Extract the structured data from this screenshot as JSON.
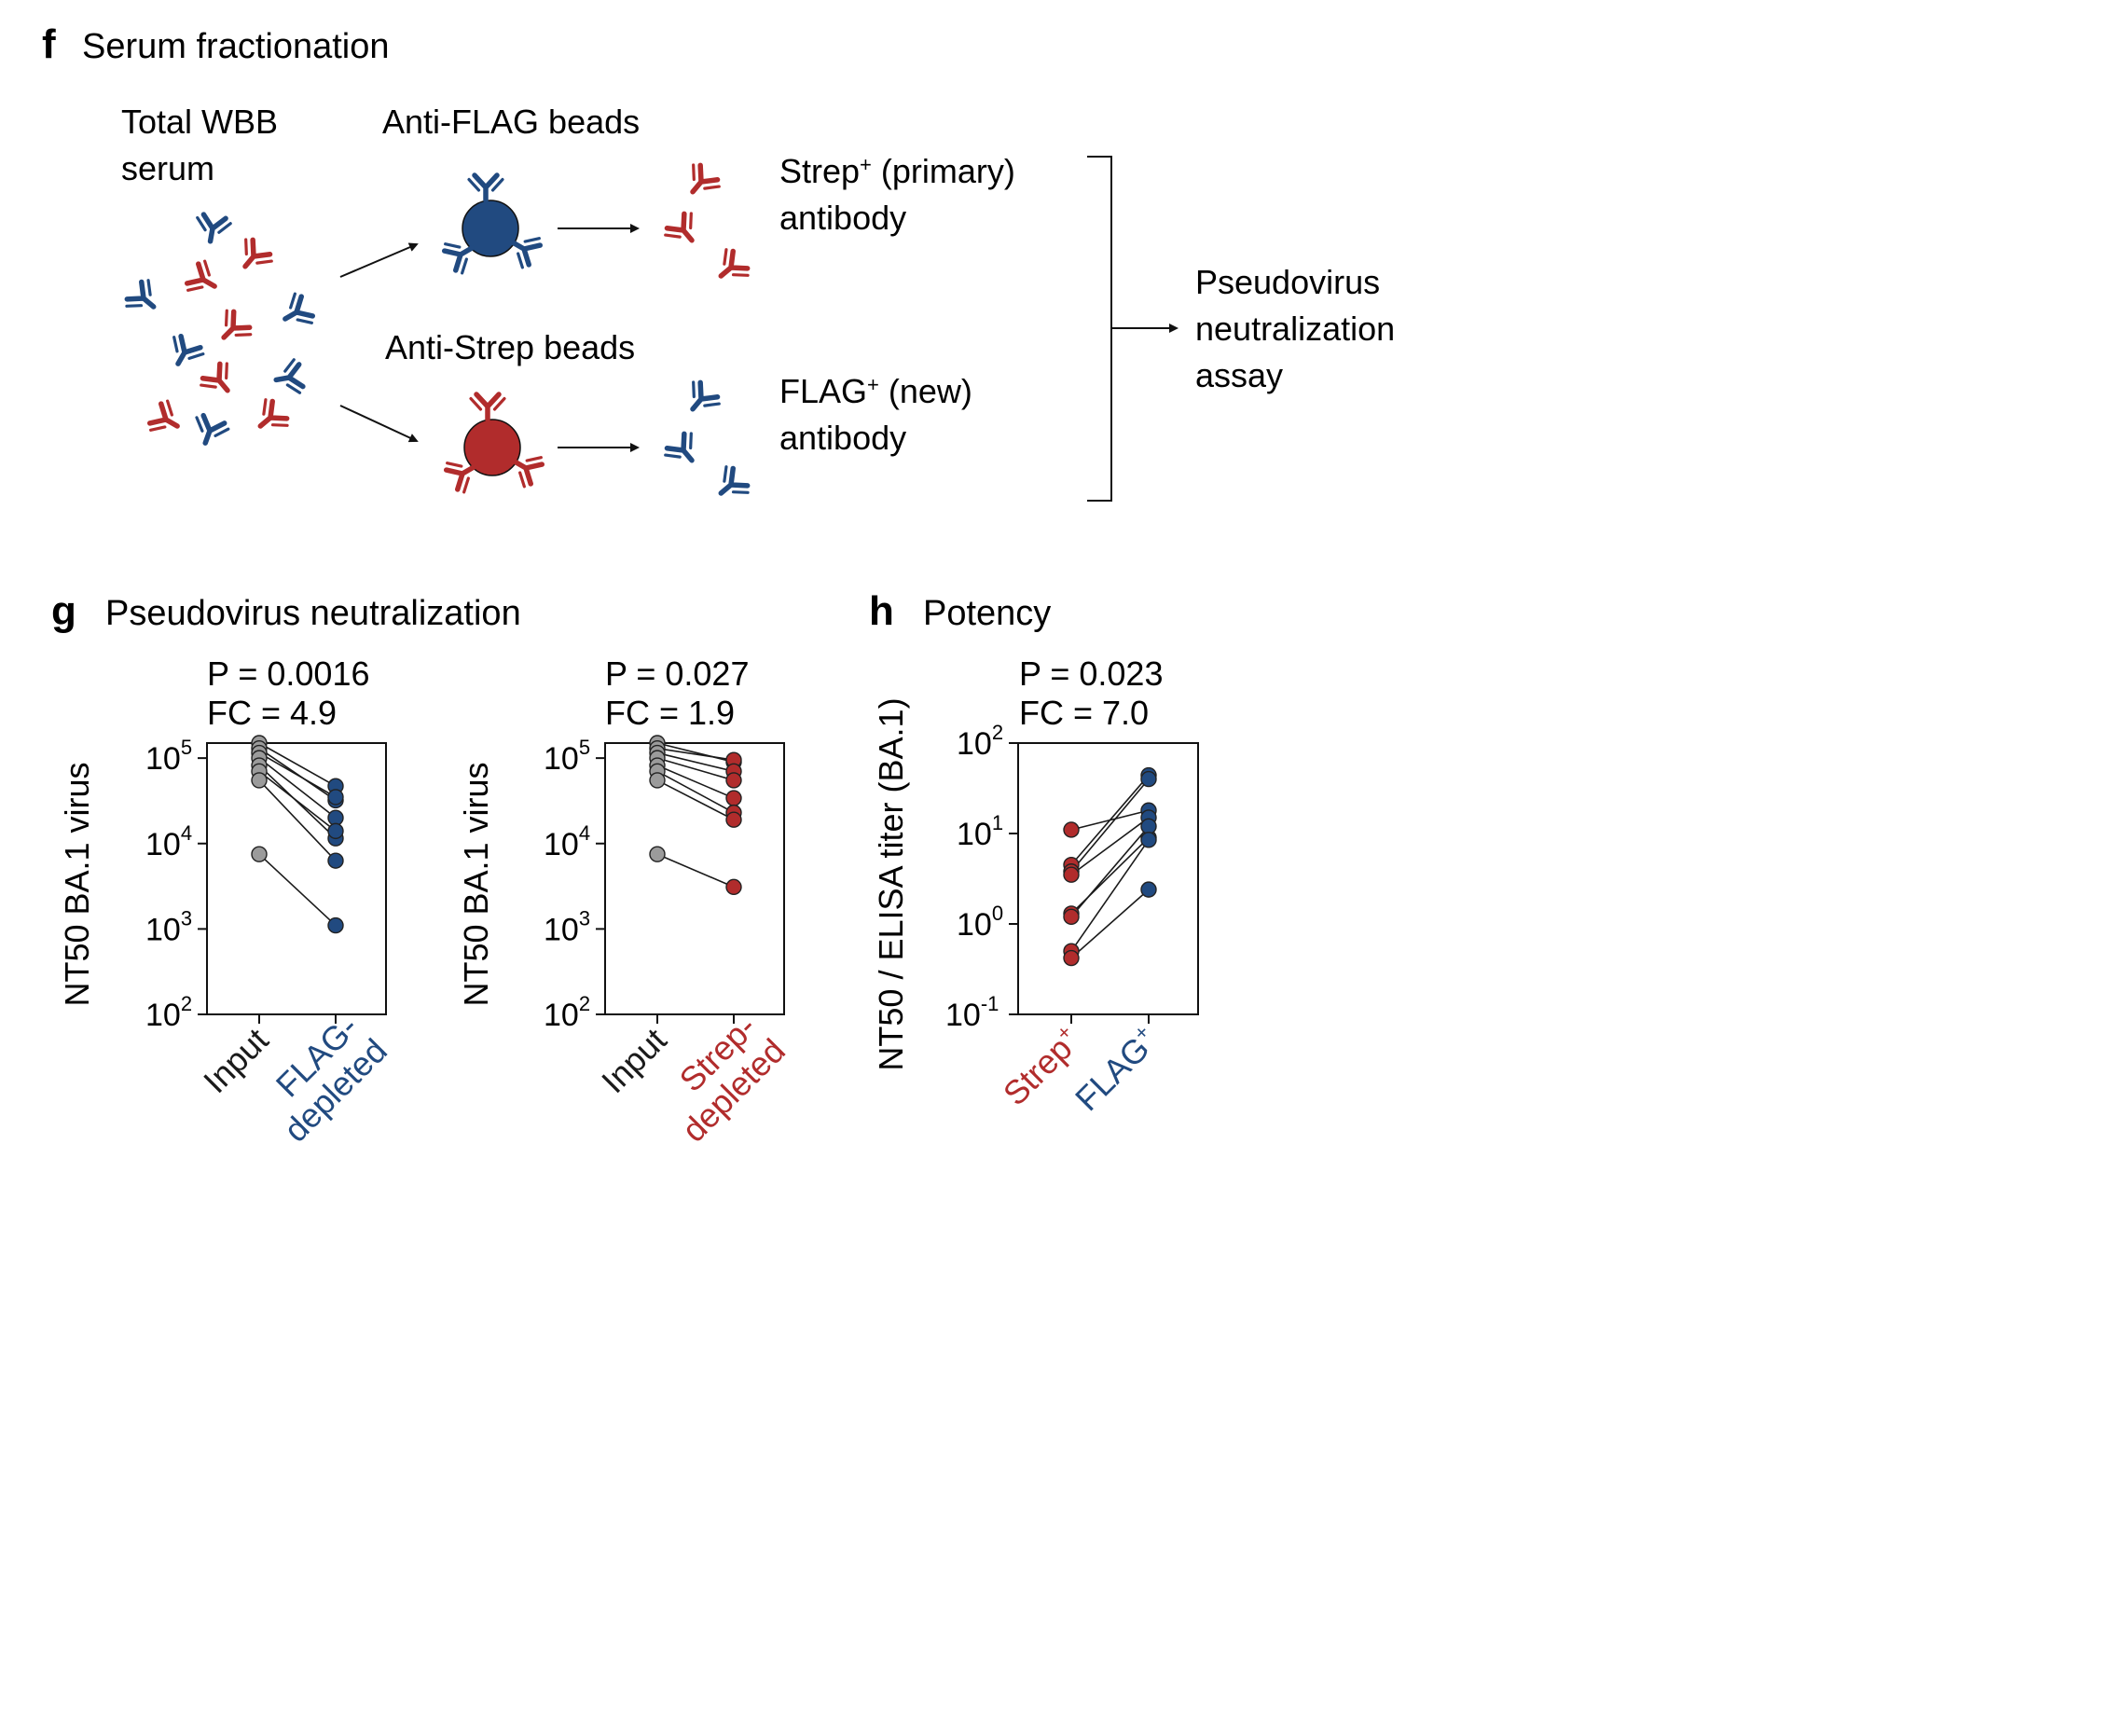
{
  "colors": {
    "blue": "#214a80",
    "red": "#b12c2c",
    "gray": "#9b9b9b",
    "line": "#1a1a1a"
  },
  "icons": [
    "antibody-icon",
    "bead-icon",
    "arrow-icon",
    "bracket-icon"
  ],
  "panel_f": {
    "letter": "f",
    "title": "Serum fractionation",
    "total_serum_label_line1": "Total WBB",
    "total_serum_label_line2": "serum",
    "anti_flag_label": "Anti-FLAG beads",
    "anti_strep_label": "Anti-Strep beads",
    "strep_out_line1_a": "Strep",
    "strep_out_line1_sup": "+",
    "strep_out_line1_b": " (primary)",
    "strep_out_line2": "antibody",
    "flag_out_line1_a": "FLAG",
    "flag_out_line1_sup": "+",
    "flag_out_line1_b": " (new)",
    "flag_out_line2": "antibody",
    "assay_line1": "Pseudovirus",
    "assay_line2": "neutralization",
    "assay_line3": "assay"
  },
  "panel_g": {
    "letter": "g",
    "title": "Pseudovirus neutralization"
  },
  "panel_h": {
    "letter": "h",
    "title": "Potency"
  },
  "chart_data": [
    {
      "type": "scatter",
      "subtype": "paired-dot",
      "title": "",
      "p_text": "P = 0.0016",
      "fc_text": "FC = 4.9",
      "ylabel": "NT50 BA.1 virus",
      "yscale": "log",
      "ylim": [
        100,
        150000
      ],
      "yticks": [
        {
          "base": "10",
          "exp": "2",
          "value": 100
        },
        {
          "base": "10",
          "exp": "3",
          "value": 1000
        },
        {
          "base": "10",
          "exp": "4",
          "value": 10000
        },
        {
          "base": "10",
          "exp": "5",
          "value": 100000
        }
      ],
      "categories": [
        {
          "lines": [
            "Input"
          ],
          "color": "#1a1a1a"
        },
        {
          "lines": [
            "FLAG-",
            "depleted"
          ],
          "color": "#214a80"
        }
      ],
      "point_colors": [
        "#9b9b9b",
        "#214a80"
      ],
      "pairs": [
        [
          150000,
          47000
        ],
        [
          130000,
          32000
        ],
        [
          115000,
          35000
        ],
        [
          100000,
          20000
        ],
        [
          82000,
          11500
        ],
        [
          70000,
          14000
        ],
        [
          55000,
          6300
        ],
        [
          7500,
          1100
        ]
      ]
    },
    {
      "type": "scatter",
      "subtype": "paired-dot",
      "title": "",
      "p_text": "P = 0.027",
      "fc_text": "FC = 1.9",
      "ylabel": "NT50 BA.1 virus",
      "yscale": "log",
      "ylim": [
        100,
        150000
      ],
      "yticks": [
        {
          "base": "10",
          "exp": "2",
          "value": 100
        },
        {
          "base": "10",
          "exp": "3",
          "value": 1000
        },
        {
          "base": "10",
          "exp": "4",
          "value": 10000
        },
        {
          "base": "10",
          "exp": "5",
          "value": 100000
        }
      ],
      "categories": [
        {
          "lines": [
            "Input"
          ],
          "color": "#1a1a1a"
        },
        {
          "lines": [
            "Strep-",
            "depleted"
          ],
          "color": "#b12c2c"
        }
      ],
      "point_colors": [
        "#9b9b9b",
        "#b12c2c"
      ],
      "pairs": [
        [
          150000,
          90000
        ],
        [
          130000,
          95000
        ],
        [
          115000,
          70000
        ],
        [
          100000,
          55000
        ],
        [
          82000,
          34000
        ],
        [
          70000,
          23000
        ],
        [
          55000,
          19000
        ],
        [
          7500,
          3100
        ]
      ]
    },
    {
      "type": "scatter",
      "subtype": "paired-dot",
      "title": "",
      "p_text": "P = 0.023",
      "fc_text": "FC = 7.0",
      "ylabel": "NT50 / ELISA titer (BA.1)",
      "yscale": "log",
      "ylim": [
        0.1,
        100
      ],
      "yticks": [
        {
          "base": "10",
          "exp": "-1",
          "value": 0.1
        },
        {
          "base": "10",
          "exp": "0",
          "value": 1
        },
        {
          "base": "10",
          "exp": "1",
          "value": 10
        },
        {
          "base": "10",
          "exp": "2",
          "value": 100
        }
      ],
      "categories": [
        {
          "lines": [
            "Strep",
            "+"
          ],
          "color": "#b12c2c",
          "sup": true
        },
        {
          "lines": [
            "FLAG",
            "+"
          ],
          "color": "#214a80",
          "sup": true
        }
      ],
      "point_colors": [
        "#b12c2c",
        "#214a80"
      ],
      "pairs": [
        [
          11,
          18
        ],
        [
          4.5,
          44
        ],
        [
          3.8,
          40
        ],
        [
          3.5,
          15
        ],
        [
          1.3,
          9
        ],
        [
          1.2,
          12
        ],
        [
          0.5,
          8.5
        ],
        [
          0.42,
          2.4
        ]
      ]
    }
  ]
}
